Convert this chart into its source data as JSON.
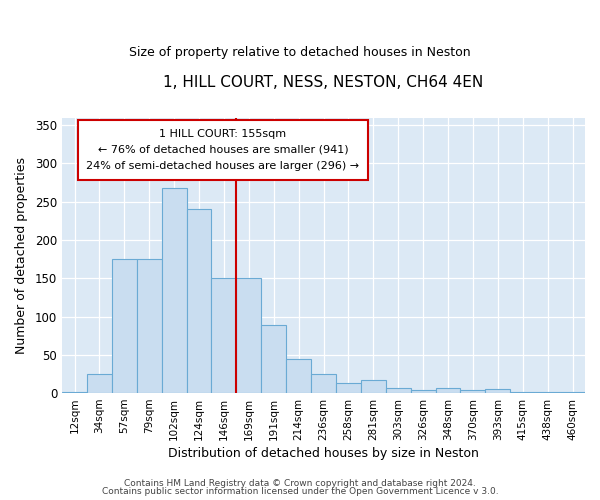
{
  "title": "1, HILL COURT, NESS, NESTON, CH64 4EN",
  "subtitle": "Size of property relative to detached houses in Neston",
  "xlabel": "Distribution of detached houses by size in Neston",
  "ylabel": "Number of detached properties",
  "bar_labels": [
    "12sqm",
    "34sqm",
    "57sqm",
    "79sqm",
    "102sqm",
    "124sqm",
    "146sqm",
    "169sqm",
    "191sqm",
    "214sqm",
    "236sqm",
    "258sqm",
    "281sqm",
    "303sqm",
    "326sqm",
    "348sqm",
    "370sqm",
    "393sqm",
    "415sqm",
    "438sqm",
    "460sqm"
  ],
  "bar_values": [
    1,
    25,
    175,
    175,
    268,
    240,
    150,
    150,
    89,
    45,
    25,
    13,
    17,
    7,
    4,
    7,
    4,
    5,
    2,
    1,
    1
  ],
  "bar_color": "#c9ddf0",
  "bar_edge_color": "#6aaad4",
  "reference_line_color": "#cc0000",
  "annotation_text": "1 HILL COURT: 155sqm\n← 76% of detached houses are smaller (941)\n24% of semi-detached houses are larger (296) →",
  "annotation_box_edge": "#cc0000",
  "ylim": [
    0,
    360
  ],
  "yticks": [
    0,
    50,
    100,
    150,
    200,
    250,
    300,
    350
  ],
  "footer_line1": "Contains HM Land Registry data © Crown copyright and database right 2024.",
  "footer_line2": "Contains public sector information licensed under the Open Government Licence v 3.0.",
  "fig_bg_color": "#ffffff",
  "plot_bg_color": "#dce9f5"
}
